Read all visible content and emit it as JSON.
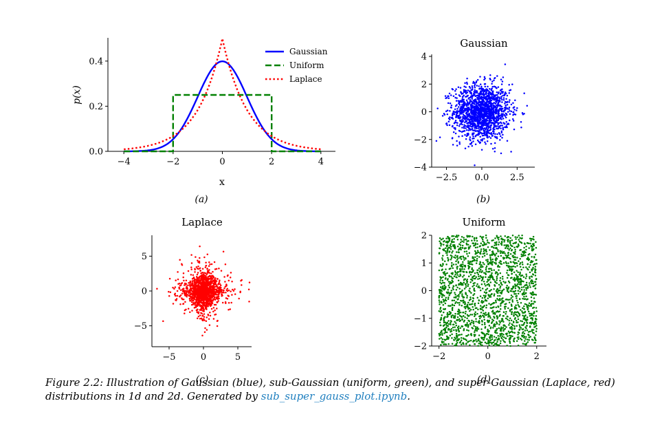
{
  "caption": {
    "text": "Figure 2.2: Illustration of Gaussian (blue), sub-Gaussian (uniform, green), and super-Gaussian (Laplace, red) distributions in 1d and 2d. Generated by ",
    "link": "sub_super_gauss_plot.ipynb",
    "end": "."
  },
  "chart_data": [
    {
      "id": "a",
      "type": "line",
      "sublabel": "(a)",
      "xlabel": "x",
      "ylabel": "p(x)",
      "xlim": [
        -4.2,
        4.2
      ],
      "ylim": [
        0,
        0.5
      ],
      "xticks": [
        -4,
        -2,
        0,
        2,
        4
      ],
      "xticklabels": [
        "−4",
        "−2",
        "0",
        "2",
        "4"
      ],
      "yticks": [
        0,
        0.2,
        0.4
      ],
      "yticklabels": [
        "0.0",
        "0.2",
        "0.4"
      ],
      "legend_position": "top-right",
      "series": [
        {
          "name": "Gaussian",
          "color": "#0000ff",
          "style": "solid",
          "x": [
            -4,
            -3.5,
            -3,
            -2.5,
            -2,
            -1.5,
            -1,
            -0.5,
            0,
            0.5,
            1,
            1.5,
            2,
            2.5,
            3,
            3.5,
            4
          ],
          "y": [
            0.0001,
            0.0009,
            0.0044,
            0.0175,
            0.054,
            0.1295,
            0.242,
            0.3521,
            0.3989,
            0.3521,
            0.242,
            0.1295,
            0.054,
            0.0175,
            0.0044,
            0.0009,
            0.0001
          ]
        },
        {
          "name": "Uniform",
          "color": "#008000",
          "style": "dashed",
          "x": [
            -4,
            -2,
            -2,
            2,
            2,
            4
          ],
          "y": [
            0,
            0,
            0.25,
            0.25,
            0,
            0
          ]
        },
        {
          "name": "Laplace",
          "color": "#ff0000",
          "style": "dotted",
          "x": [
            -4,
            -3.5,
            -3,
            -2.5,
            -2,
            -1.5,
            -1,
            -0.5,
            0,
            0.5,
            1,
            1.5,
            2,
            2.5,
            3,
            3.5,
            4
          ],
          "y": [
            0.0092,
            0.0151,
            0.0249,
            0.041,
            0.0677,
            0.1116,
            0.1839,
            0.3033,
            0.5,
            0.3033,
            0.1839,
            0.1116,
            0.0677,
            0.041,
            0.0249,
            0.0151,
            0.0092
          ]
        }
      ]
    },
    {
      "id": "b",
      "type": "scatter",
      "sublabel": "(b)",
      "title": "Gaussian",
      "color": "#0000ff",
      "xlim": [
        -3.5,
        3.7
      ],
      "ylim": [
        -4,
        4
      ],
      "xticks": [
        -2.5,
        0,
        2.5
      ],
      "xticklabels": [
        "−2.5",
        "0.0",
        "2.5"
      ],
      "yticks": [
        -4,
        -2,
        0,
        2,
        4
      ],
      "yticklabels": [
        "−4",
        "−2",
        "0",
        "2",
        "4"
      ],
      "distribution": "gaussian",
      "n_points": 1600,
      "scale": [
        1,
        1
      ]
    },
    {
      "id": "c",
      "type": "scatter",
      "sublabel": "(c)",
      "title": "Laplace",
      "color": "#ff0000",
      "xlim": [
        -7.5,
        7
      ],
      "ylim": [
        -8,
        8
      ],
      "xticks": [
        -5,
        0,
        5
      ],
      "xticklabels": [
        "−5",
        "0",
        "5"
      ],
      "yticks": [
        -5,
        0,
        5
      ],
      "yticklabels": [
        "−5",
        "0",
        "5"
      ],
      "distribution": "laplace",
      "n_points": 1600,
      "scale": [
        1,
        1
      ]
    },
    {
      "id": "d",
      "type": "scatter",
      "sublabel": "(d)",
      "title": "Uniform",
      "color": "#008000",
      "xlim": [
        -2.3,
        2.4
      ],
      "ylim": [
        -2,
        2
      ],
      "xticks": [
        -2,
        0,
        2
      ],
      "xticklabels": [
        "−2",
        "0",
        "2"
      ],
      "yticks": [
        -2,
        -1,
        0,
        1,
        2
      ],
      "yticklabels": [
        "−2",
        "−1",
        "0",
        "1",
        "2"
      ],
      "distribution": "uniform",
      "n_points": 2000,
      "range": [
        -2,
        2
      ]
    }
  ]
}
